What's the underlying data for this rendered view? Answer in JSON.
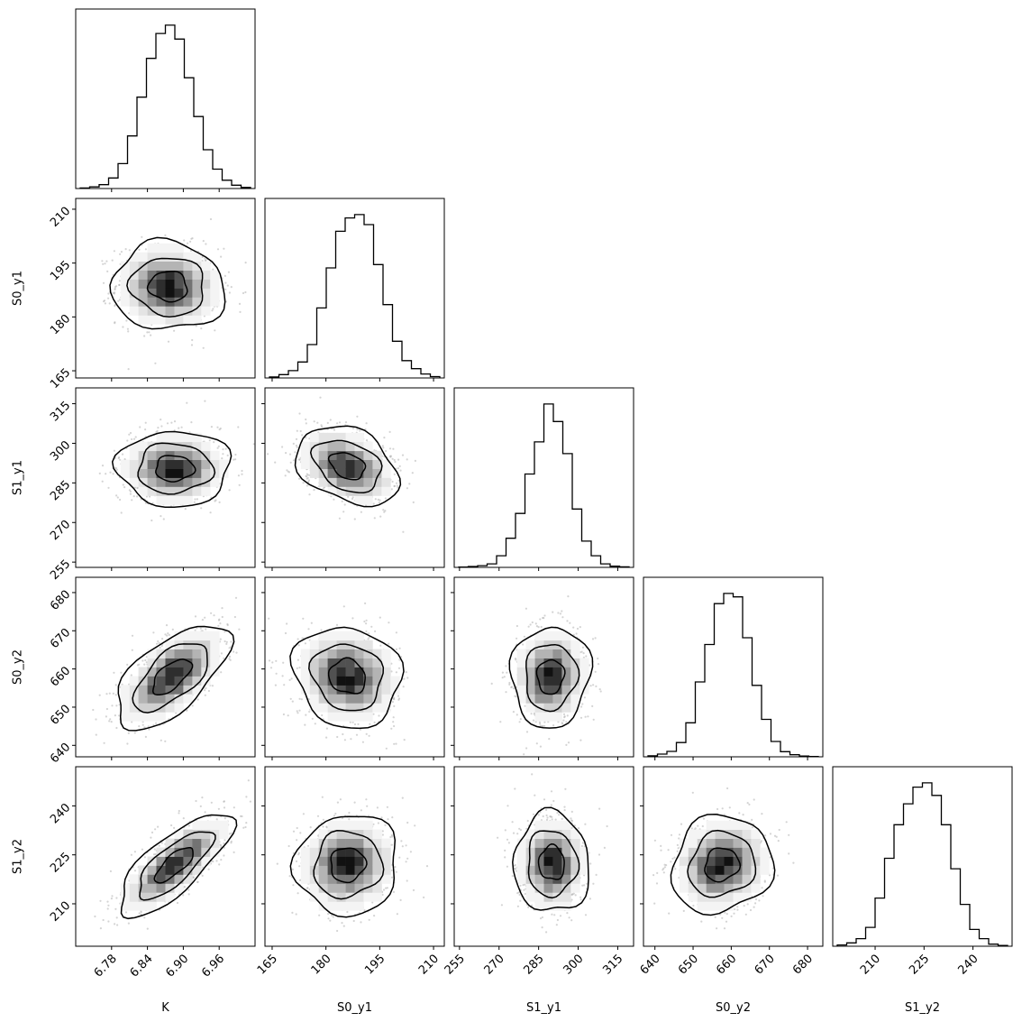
{
  "chart_data": {
    "type": "corner",
    "parameters": [
      "K",
      "S0_y1",
      "S1_y1",
      "S0_y2",
      "S1_y2"
    ],
    "marginal_histograms": [
      {
        "parameter": "K",
        "xlim": [
          6.72,
          7.02
        ],
        "bin_values": [
          2,
          6,
          14,
          38,
          90,
          190,
          330,
          470,
          560,
          590,
          540,
          400,
          260,
          140,
          70,
          30,
          12,
          4
        ]
      },
      {
        "parameter": "S0_y1",
        "xlim": [
          163,
          213
        ],
        "bin_values": [
          3,
          10,
          22,
          48,
          100,
          210,
          330,
          440,
          480,
          490,
          460,
          340,
          220,
          110,
          52,
          28,
          12,
          4
        ]
      },
      {
        "parameter": "S1_y1",
        "xlim": [
          253,
          321
        ],
        "bin_values": [
          1,
          3,
          6,
          12,
          40,
          100,
          185,
          320,
          430,
          560,
          500,
          390,
          200,
          90,
          40,
          12,
          4,
          2
        ]
      },
      {
        "parameter": "S0_y2",
        "xlim": [
          637,
          684
        ],
        "bin_values": [
          3,
          8,
          16,
          42,
          100,
          220,
          330,
          450,
          480,
          470,
          350,
          210,
          110,
          45,
          15,
          6,
          2,
          1
        ]
      },
      {
        "parameter": "S1_y2",
        "xlim": [
          197,
          252
        ],
        "bin_values": [
          3,
          8,
          18,
          45,
          115,
          210,
          290,
          340,
          380,
          390,
          360,
          290,
          185,
          100,
          40,
          18,
          5,
          2
        ]
      }
    ],
    "correlations": [
      {
        "x": "K",
        "y": "S0_y1",
        "rho": -0.05,
        "x_mean": 6.875,
        "y_mean": 188.5,
        "x_sd": 0.043,
        "y_sd": 5.6
      },
      {
        "x": "K",
        "y": "S1_y1",
        "rho": 0.0,
        "x_mean": 6.885,
        "y_mean": 290.5,
        "x_sd": 0.043,
        "y_sd": 6.5
      },
      {
        "x": "S0_y1",
        "y": "S1_y1",
        "rho": -0.32,
        "x_mean": 186.0,
        "y_mean": 291.5,
        "x_sd": 6.5,
        "y_sd": 6.8
      },
      {
        "x": "K",
        "y": "S0_y2",
        "rho": 0.62,
        "x_mean": 6.88,
        "y_mean": 658.0,
        "x_sd": 0.043,
        "y_sd": 6.2
      },
      {
        "x": "S0_y1",
        "y": "S0_y2",
        "rho": -0.12,
        "x_mean": 186.0,
        "y_mean": 658.0,
        "x_sd": 6.8,
        "y_sd": 6.0
      },
      {
        "x": "S1_y1",
        "y": "S0_y2",
        "rho": 0.05,
        "x_mean": 289.5,
        "y_mean": 658.0,
        "x_sd": 6.8,
        "y_sd": 6.0
      },
      {
        "x": "K",
        "y": "S1_y2",
        "rho": 0.76,
        "x_mean": 6.885,
        "y_mean": 222.0,
        "x_sd": 0.043,
        "y_sd": 7.2
      },
      {
        "x": "S0_y1",
        "y": "S1_y2",
        "rho": 0.05,
        "x_mean": 186.0,
        "y_mean": 222.0,
        "x_sd": 6.5,
        "y_sd": 7.0
      },
      {
        "x": "S1_y1",
        "y": "S1_y2",
        "rho": -0.03,
        "x_mean": 290.0,
        "y_mean": 222.5,
        "x_sd": 6.5,
        "y_sd": 7.0
      },
      {
        "x": "S0_y2",
        "y": "S1_y2",
        "rho": 0.1,
        "x_mean": 657.5,
        "y_mean": 222.0,
        "x_sd": 6.0,
        "y_sd": 6.8
      }
    ],
    "x_axis_ticks": {
      "K": [
        "6.78",
        "6.84",
        "6.90",
        "6.96"
      ],
      "S0_y1": [
        "165",
        "180",
        "195",
        "210"
      ],
      "S1_y1": [
        "255",
        "270",
        "285",
        "300",
        "315"
      ],
      "S0_y2": [
        "640",
        "650",
        "660",
        "670",
        "680"
      ],
      "S1_y2": [
        "210",
        "225",
        "240"
      ]
    },
    "y_axis_ticks": {
      "S0_y1": [
        "165",
        "180",
        "195",
        "210"
      ],
      "S1_y1": [
        "255",
        "270",
        "285",
        "300",
        "315"
      ],
      "S0_y2": [
        "640",
        "650",
        "660",
        "670",
        "680"
      ],
      "S1_y2": [
        "210",
        "225",
        "240"
      ]
    },
    "axis_labels": {
      "x": [
        "K",
        "S0_y1",
        "S1_y1",
        "S0_y2",
        "S1_y2"
      ],
      "y": [
        "S0_y1",
        "S1_y1",
        "S0_y2",
        "S1_y2"
      ]
    },
    "colors": {
      "line": "#000000",
      "points": "#b0b0b0",
      "background": "#ffffff"
    },
    "contour_levels": [
      "inner",
      "middle",
      "outer"
    ],
    "grid": false
  }
}
